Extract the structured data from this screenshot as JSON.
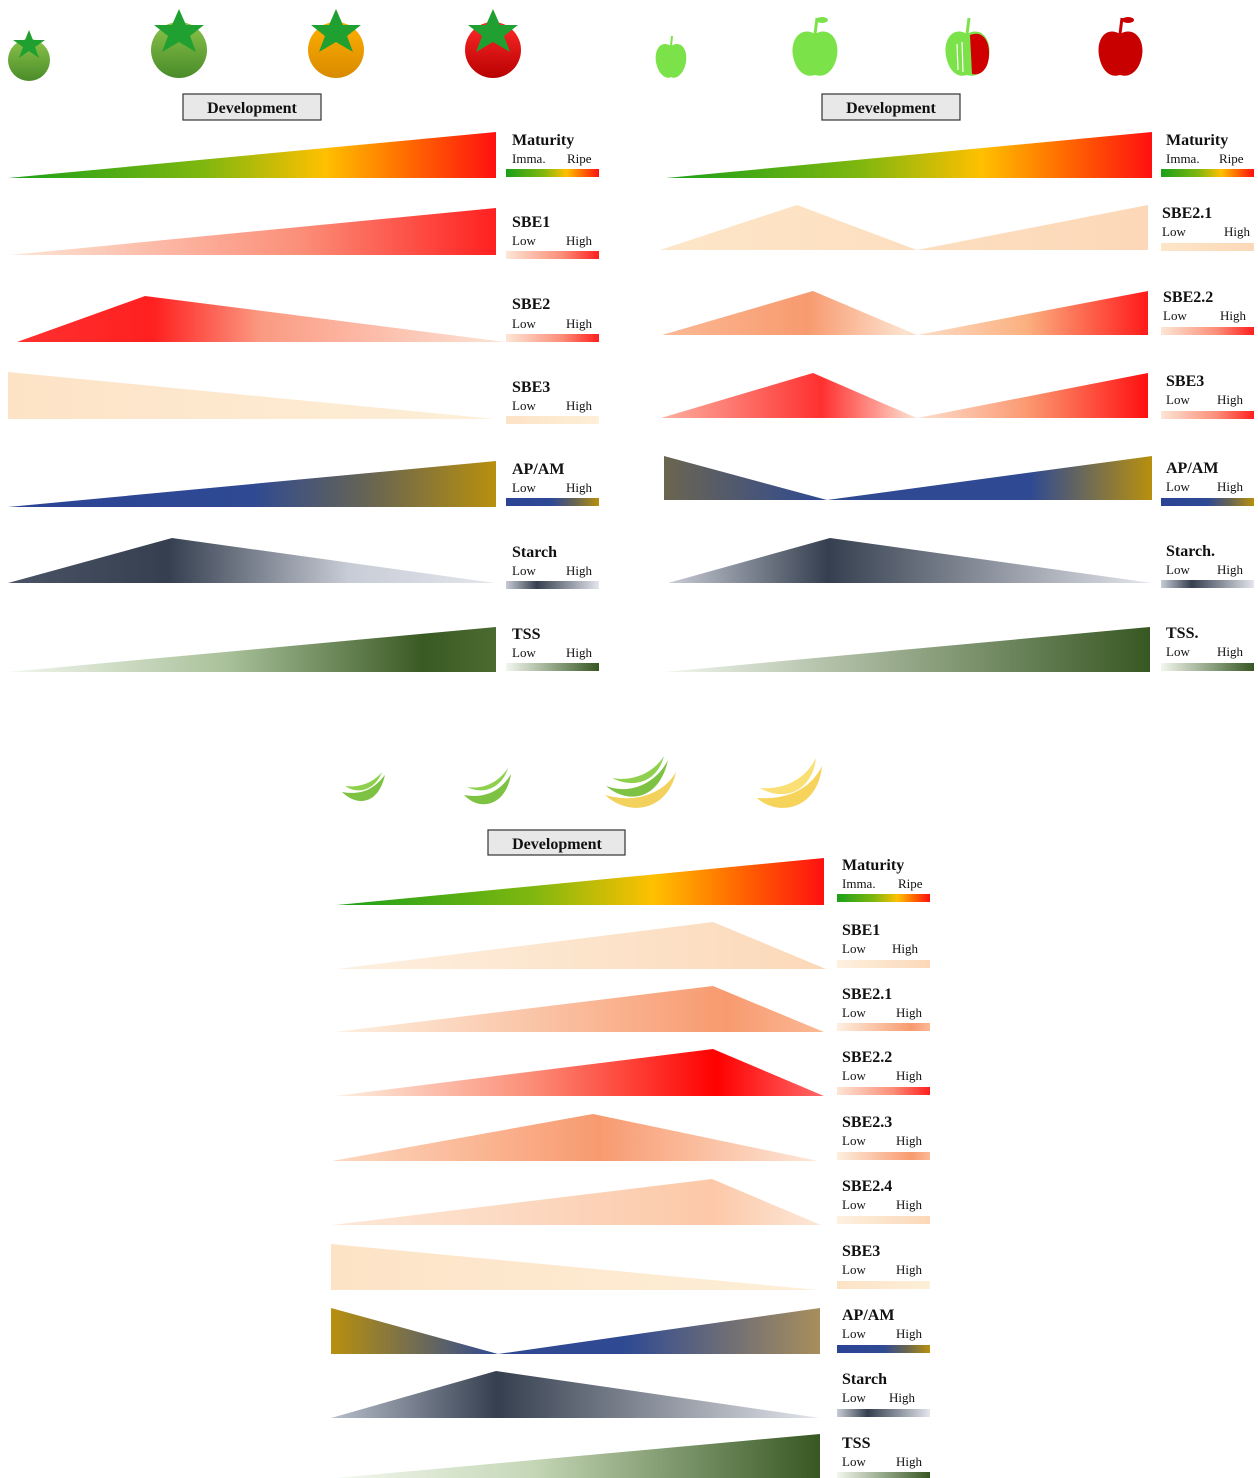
{
  "colors": {
    "maturity": [
      "#1aa01a",
      "#7fb70f",
      "#ffc000",
      "#ff6a00",
      "#ff1010"
    ],
    "sbe_peach": [
      "#fde8cc",
      "#fcd9b5"
    ],
    "sbe_salmon": [
      "#fde4cf",
      "#f89b75"
    ],
    "sbe_red": [
      "#fde2d2",
      "#ff1a1a"
    ],
    "apam": [
      "#263f96",
      "#2f4a93",
      "#b8900e"
    ],
    "starch": [
      "#e0e3ea",
      "#353f4f"
    ],
    "tss": [
      "#eef4ea",
      "#375722"
    ],
    "button_fill": "#e8e8e8"
  },
  "panels": [
    {
      "fruit": "tomato",
      "icons": [
        "tomato-immature-icon",
        "tomato-green-icon",
        "tomato-breaker-icon",
        "tomato-ripe-icon"
      ],
      "dev_label": "Development",
      "rows": [
        {
          "name": "Maturity",
          "lo": "Imma.",
          "hi": "Ripe"
        },
        {
          "name": "SBE1",
          "lo": "Low",
          "hi": "High"
        },
        {
          "name": "SBE2",
          "lo": "Low",
          "hi": "High"
        },
        {
          "name": "SBE3",
          "lo": "Low",
          "hi": "High"
        },
        {
          "name": "AP/AM",
          "lo": "Low",
          "hi": "High"
        },
        {
          "name": "Starch",
          "lo": "Low",
          "hi": "High"
        },
        {
          "name": "TSS",
          "lo": "Low",
          "hi": "High"
        }
      ]
    },
    {
      "fruit": "apple",
      "icons": [
        "apple-small-icon",
        "apple-green-icon",
        "apple-turning-icon",
        "apple-ripe-icon"
      ],
      "dev_label": "Development",
      "rows": [
        {
          "name": "Maturity",
          "lo": "Imma.",
          "hi": "Ripe"
        },
        {
          "name": "SBE2.1",
          "lo": "Low",
          "hi": "High"
        },
        {
          "name": "SBE2.2",
          "lo": "Low",
          "hi": "High"
        },
        {
          "name": "SBE3",
          "lo": "Low",
          "hi": "High"
        },
        {
          "name": "AP/AM",
          "lo": "Low",
          "hi": "High"
        },
        {
          "name": "Starch.",
          "lo": "Low",
          "hi": "High"
        },
        {
          "name": "TSS.",
          "lo": "Low",
          "hi": "High"
        }
      ]
    },
    {
      "fruit": "banana",
      "icons": [
        "banana-small-icon",
        "banana-green-icon",
        "banana-turning-icon",
        "banana-ripe-icon"
      ],
      "dev_label": "Development",
      "rows": [
        {
          "name": "Maturity",
          "lo": "Imma.",
          "hi": "Ripe"
        },
        {
          "name": "SBE1",
          "lo": "Low",
          "hi": "High"
        },
        {
          "name": "SBE2.1",
          "lo": "Low",
          "hi": "High"
        },
        {
          "name": "SBE2.2",
          "lo": "Low",
          "hi": "High"
        },
        {
          "name": "SBE2.3",
          "lo": "Low",
          "hi": "High"
        },
        {
          "name": "SBE2.4",
          "lo": "Low",
          "hi": "High"
        },
        {
          "name": "SBE3",
          "lo": "Low",
          "hi": "High"
        },
        {
          "name": "AP/AM",
          "lo": "Low",
          "hi": "High"
        },
        {
          "name": "Starch",
          "lo": "Low",
          "hi": "High"
        },
        {
          "name": "TSS",
          "lo": "Low",
          "hi": "High"
        }
      ]
    }
  ]
}
